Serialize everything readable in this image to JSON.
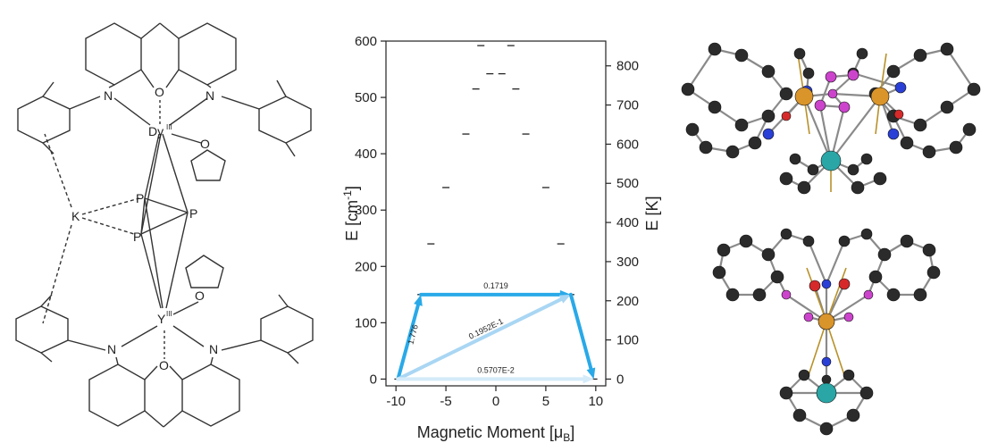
{
  "structure": {
    "atom_labels": {
      "o_top": "O",
      "n_left_top": "N",
      "n_right_top": "N",
      "dy": "Dy",
      "dy_sup": "III",
      "o_thf_top": "O",
      "p1": "P",
      "p2": "P",
      "p3": "P",
      "k": "K",
      "o_thf_bottom": "O",
      "y": "Y",
      "y_sup": "III",
      "n_left_bottom": "N",
      "n_right_bottom": "N",
      "o_bottom": "O"
    }
  },
  "chart_data": {
    "type": "scatter",
    "xlabel": "Magnetic Moment [μB]",
    "xlabel_main": "Magnetic Moment [μ",
    "xlabel_sub": "B",
    "xlabel_end": "]",
    "ylabel_left": "E [cm-1]",
    "ylabel_left_main": "E [cm",
    "ylabel_left_sup": "-1",
    "ylabel_left_end": "]",
    "ylabel_right": "E [K]",
    "xlim": [
      -11,
      11
    ],
    "ylim": [
      -12,
      600
    ],
    "xticks": [
      -10,
      -5,
      0,
      5,
      10
    ],
    "yticks_left": [
      0,
      100,
      200,
      300,
      400,
      500,
      600
    ],
    "yticks_right": [
      0,
      100,
      200,
      300,
      400,
      500,
      600,
      700,
      800
    ],
    "kelvin_per_wavenumber": 1.4388,
    "levels": [
      {
        "x": -9.8,
        "y": 0
      },
      {
        "x": 9.8,
        "y": 0
      },
      {
        "x": -7.5,
        "y": 150
      },
      {
        "x": 7.5,
        "y": 150
      },
      {
        "x": -6.5,
        "y": 240
      },
      {
        "x": 6.5,
        "y": 240
      },
      {
        "x": -5,
        "y": 340
      },
      {
        "x": 5,
        "y": 340
      },
      {
        "x": -3,
        "y": 435
      },
      {
        "x": 3,
        "y": 435
      },
      {
        "x": -2,
        "y": 515
      },
      {
        "x": 2,
        "y": 515
      },
      {
        "x": -0.6,
        "y": 542
      },
      {
        "x": 0.6,
        "y": 542
      },
      {
        "x": -1.5,
        "y": 592
      },
      {
        "x": 1.5,
        "y": 592
      }
    ],
    "transitions": [
      {
        "from": [
          -9.8,
          0
        ],
        "to": [
          -7.5,
          150
        ],
        "label": "1.776",
        "color": "#29a9e8"
      },
      {
        "from": [
          -7.5,
          150
        ],
        "to": [
          7.5,
          150
        ],
        "label": "0.1719",
        "color": "#29a9e8"
      },
      {
        "from": [
          -9.8,
          0
        ],
        "to": [
          7.5,
          150
        ],
        "label": "0.1952E-1",
        "color": "#a9d6f3"
      },
      {
        "from": [
          -9.8,
          0
        ],
        "to": [
          9.8,
          0
        ],
        "label": "0.5707E-2",
        "color": "#d4ebf9"
      },
      {
        "from": [
          7.5,
          150
        ],
        "to": [
          9.8,
          0
        ],
        "label": "",
        "color": "#29a9e8"
      }
    ]
  }
}
